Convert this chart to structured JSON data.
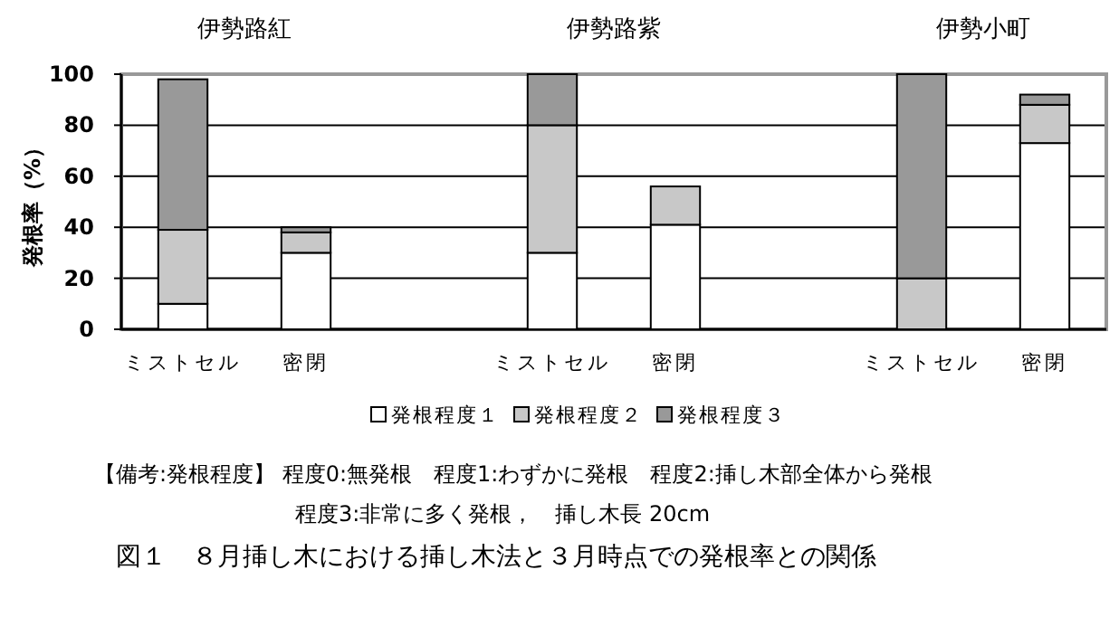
{
  "chart_data": {
    "type": "bar",
    "stacked": true,
    "title": "図１　８月挿し木における挿し木法と３月時点での発根率との関係",
    "ylabel": "発根率（%）",
    "categories": [
      "ミストセル",
      "密閉",
      null,
      "ミストセル",
      "密閉",
      null,
      "ミストセル",
      "密閉"
    ],
    "series": [
      {
        "name": "発根程度１",
        "color": "#ffffff",
        "values": [
          10,
          30,
          null,
          30,
          41,
          null,
          0,
          73
        ]
      },
      {
        "name": "発根程度２",
        "color": "#c8c8c8",
        "values": [
          29,
          8,
          null,
          50,
          15,
          null,
          20,
          15
        ]
      },
      {
        "name": "発根程度３",
        "color": "#999999",
        "values": [
          59,
          2,
          null,
          20,
          0,
          null,
          80,
          4
        ]
      }
    ],
    "ylim": [
      0,
      100
    ],
    "yticks": [
      0,
      20,
      40,
      60,
      80,
      100
    ],
    "grid": "y",
    "legend": "bottom",
    "annotations": [
      "伊勢路紅",
      "伊勢路紫",
      "伊勢小町",
      "【備考:発根程度】 程度0:無発根　程度1:わずかに発根　程度2:挿し木部全体から発根",
      "程度3:非常に多く発根，　挿し木長 20cm"
    ]
  }
}
